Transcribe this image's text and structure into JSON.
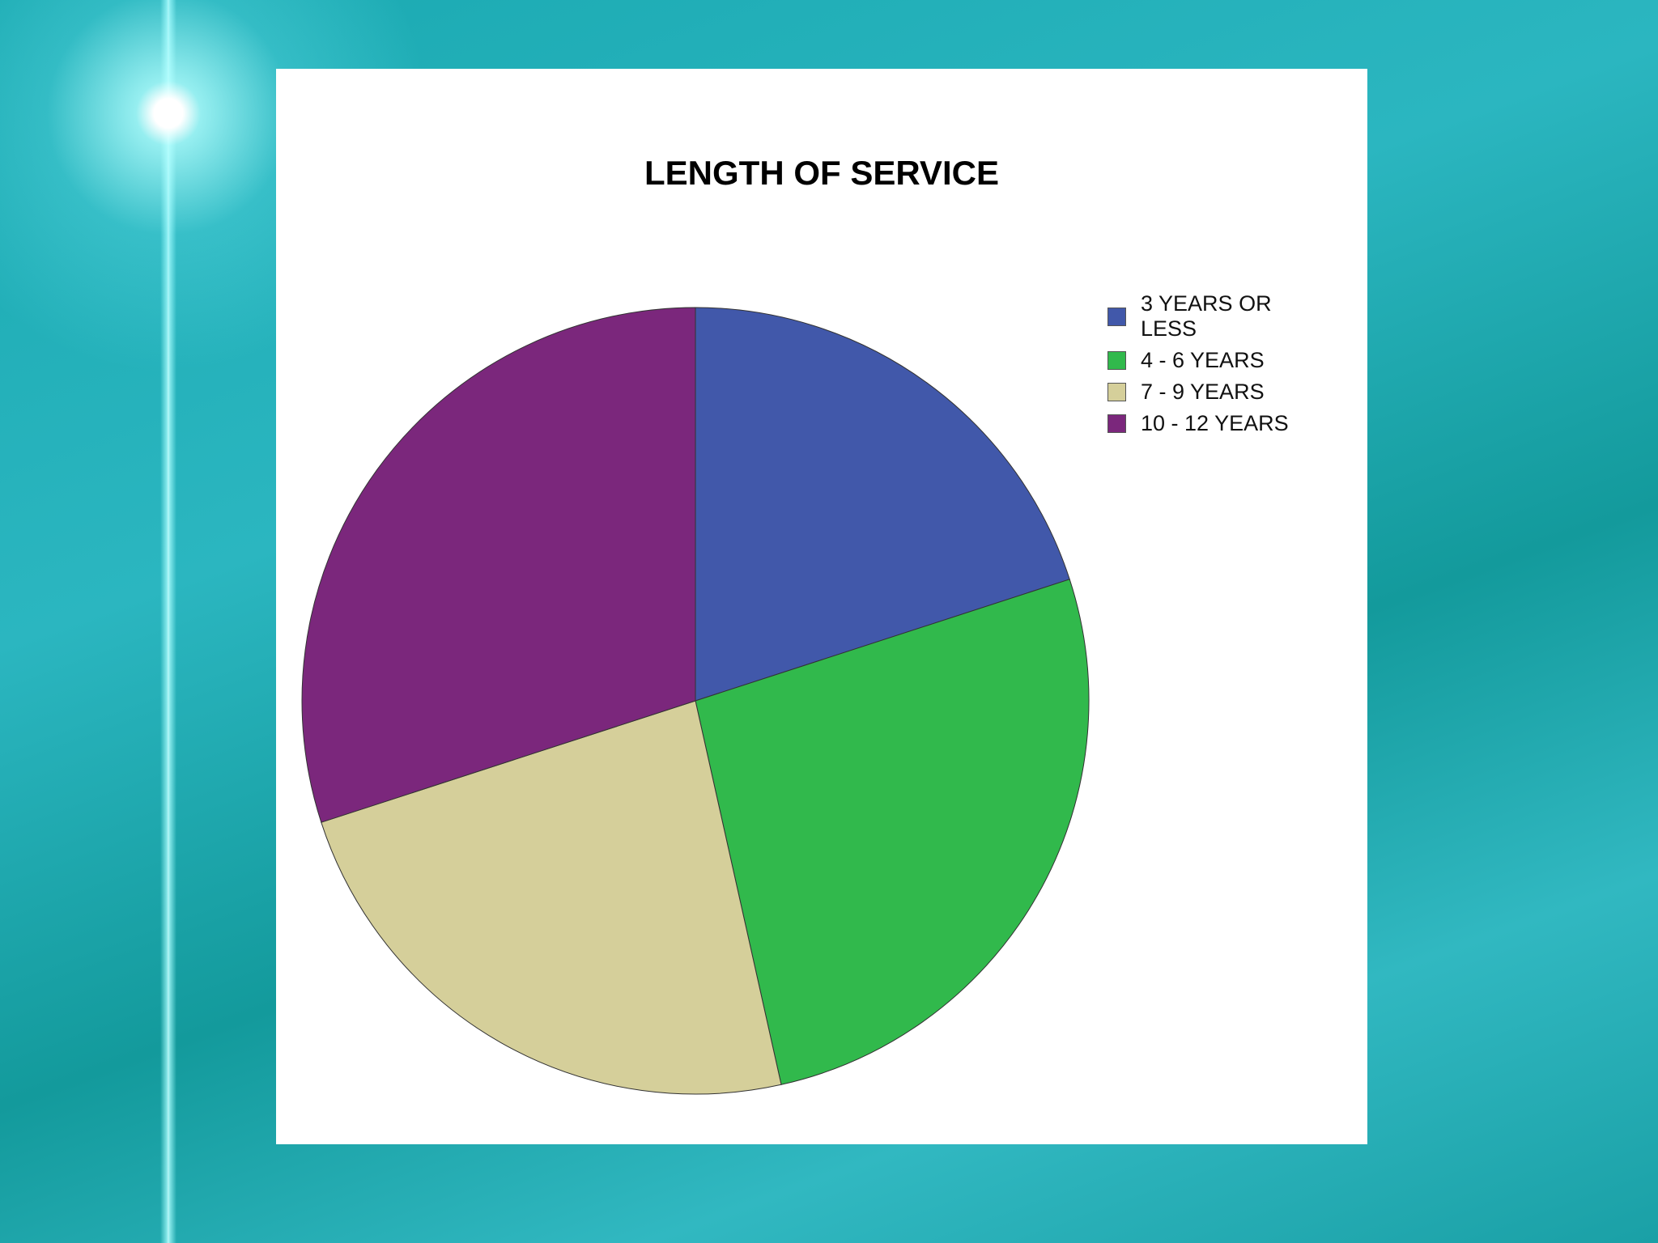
{
  "chart_data": {
    "type": "pie",
    "title": "LENGTH OF SERVICE",
    "categories": [
      "3 YEARS OR LESS",
      "4 - 6 YEARS",
      "7 - 9 YEARS",
      "10 - 12 YEARS"
    ],
    "values": [
      20,
      26.5,
      23.5,
      30
    ],
    "colors": [
      "#4158aa",
      "#31b94c",
      "#d5cf9a",
      "#7b277c"
    ],
    "legend": "right"
  }
}
